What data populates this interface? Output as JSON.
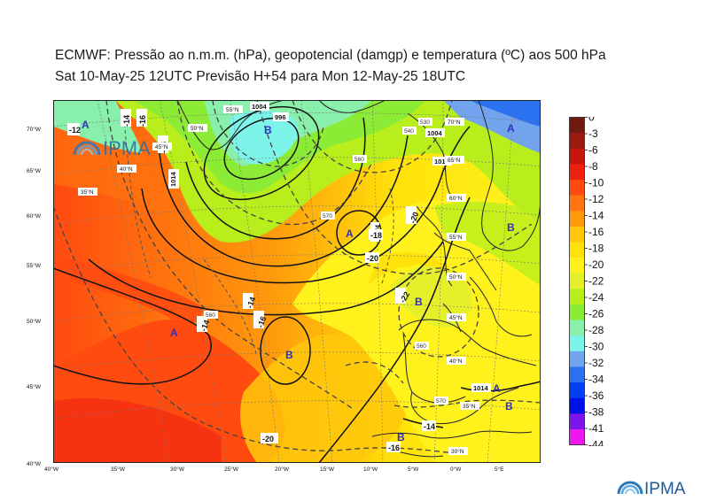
{
  "header": {
    "title_line1": "ECMWF:  Pressão ao n.m.m. (hPa), geopotencial (damgp) e temperatura (ºC) aos 500 hPa",
    "title_line2": "Sat 10-May-25 12UTC Previsão H+54 para Mon 12-May-25 18UTC"
  },
  "branding": {
    "logo_text": "IPMA"
  },
  "map": {
    "lat_labels": [
      "70°W",
      "65°W",
      "60°W",
      "55°W",
      "50°W",
      "45°W",
      "40°W"
    ],
    "lon_labels": [
      "40°W",
      "35°W",
      "30°W",
      "25°W",
      "20°W",
      "15°W",
      "10°W",
      "5°W",
      "0°W",
      "5°E"
    ],
    "inner_lat_labels": [
      "70°N",
      "65°N",
      "60°N",
      "55°N",
      "50°N",
      "45°N",
      "40°N",
      "35°N",
      "30°N"
    ],
    "west_lat_labels": [
      "55°N",
      "50°N",
      "45°N",
      "40°N",
      "35°N"
    ],
    "pressure_centers": [
      {
        "type": "A",
        "label": "A"
      },
      {
        "type": "B",
        "label": "B"
      },
      {
        "type": "A",
        "label": "A"
      },
      {
        "type": "B",
        "label": "B"
      },
      {
        "type": "A",
        "label": "A"
      },
      {
        "type": "B",
        "label": "B"
      },
      {
        "type": "B",
        "label": "B"
      },
      {
        "type": "A",
        "label": "A"
      },
      {
        "type": "B",
        "label": "B"
      },
      {
        "type": "A",
        "label": "A"
      },
      {
        "type": "B",
        "label": "B"
      }
    ],
    "isobar_labels": [
      "1004",
      "996",
      "1014",
      "1014",
      "1024",
      "1014",
      "1004"
    ],
    "temp_labels": [
      "-12",
      "-14",
      "-16",
      "-16",
      "-18",
      "-20",
      "-20",
      "-22",
      "-14",
      "-16",
      "-20",
      "-14",
      "-16",
      "-14"
    ],
    "geopot_labels": [
      "560",
      "570",
      "530",
      "540",
      "560",
      "570",
      "560"
    ]
  },
  "colorbar": {
    "levels": [
      "0",
      "-3",
      "-6",
      "-8",
      "-10",
      "-12",
      "-14",
      "-16",
      "-18",
      "-20",
      "-22",
      "-24",
      "-26",
      "-28",
      "-30",
      "-32",
      "-34",
      "-36",
      "-38",
      "-41",
      "-44"
    ],
    "colors": [
      "#6e1a0c",
      "#9a1a10",
      "#c8140e",
      "#ee2010",
      "#ff4a10",
      "#ff7410",
      "#ff9a0c",
      "#ffc80a",
      "#ffe20a",
      "#fff21c",
      "#e6f02a",
      "#b8ee1c",
      "#8ceb34",
      "#88f0aa",
      "#7cf4ea",
      "#72a4ee",
      "#2a72f0",
      "#0040f2",
      "#0010e8",
      "#7a14ea",
      "#ee18ee"
    ]
  }
}
